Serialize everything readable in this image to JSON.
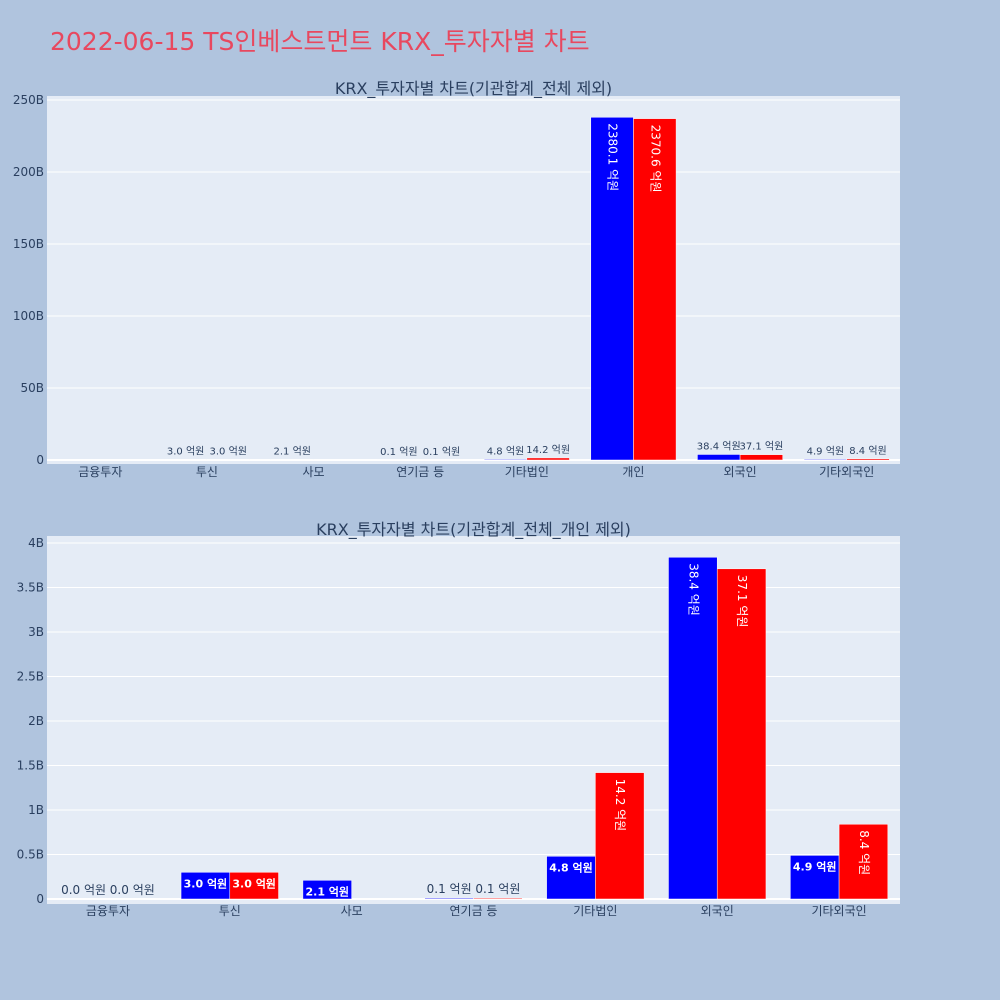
{
  "page": {
    "title": "2022-06-15 TS인베스트먼트 KRX_투자자별 차트"
  },
  "colors": {
    "buy": "#0000ff",
    "sell": "#ff0000",
    "plot_bg": "#e5ecf6",
    "paper_bg": "#b0c4de",
    "title": "#e8485f"
  },
  "chart_data": [
    {
      "type": "bar",
      "title": "KRX_투자자별 차트(기관합계_전체 제외)",
      "categories": [
        "금융투자",
        "투신",
        "사모",
        "연기금 등",
        "기타법인",
        "개인",
        "외국인",
        "기타외국인"
      ],
      "yticks": [
        "0",
        "50B",
        "100B",
        "150B",
        "200B",
        "250B"
      ],
      "ylim": [
        0,
        253000000000
      ],
      "series": [
        {
          "color": "#0000ff",
          "values": [
            0,
            300000000,
            210000000,
            10000000,
            480000000,
            238010000000,
            3840000000,
            490000000
          ],
          "labels": [
            "",
            "3.0 억원",
            "2.1 억원",
            "0.1 억원",
            "4.8 억원",
            "2380.1 억원",
            "38.4 억원",
            "4.9 억원"
          ]
        },
        {
          "color": "#ff0000",
          "values": [
            0,
            300000000,
            0,
            10000000,
            1420000000,
            237060000000,
            3710000000,
            840000000
          ],
          "labels": [
            "",
            "3.0 억원",
            "",
            "0.1 억원",
            "14.2 억원",
            "2370.6 억원",
            "37.1 억원",
            "8.4 억원"
          ]
        }
      ]
    },
    {
      "type": "bar",
      "title": "KRX_투자자별 차트(기관합계_전체_개인 제외)",
      "categories": [
        "금융투자",
        "투신",
        "사모",
        "연기금 등",
        "기타법인",
        "외국인",
        "기타외국인"
      ],
      "yticks": [
        "0",
        "0.5B",
        "1B",
        "1.5B",
        "2B",
        "2.5B",
        "3B",
        "3.5B",
        "4B"
      ],
      "ylim": [
        0,
        4040000000
      ],
      "series": [
        {
          "color": "#0000ff",
          "values": [
            0,
            300000000,
            210000000,
            10000000,
            480000000,
            3840000000,
            490000000
          ],
          "labels": [
            "0.0 억원",
            "3.0 억원",
            "2.1 억원",
            "0.1 억원",
            "4.8 억원",
            "38.4 억원",
            "4.9 억원"
          ]
        },
        {
          "color": "#ff0000",
          "values": [
            0,
            300000000,
            0,
            10000000,
            1420000000,
            3710000000,
            840000000
          ],
          "labels": [
            "0.0 억원",
            "3.0 억원",
            "",
            "0.1 억원",
            "14.2 억원",
            "37.1 억원",
            "8.4 억원"
          ]
        }
      ]
    }
  ]
}
